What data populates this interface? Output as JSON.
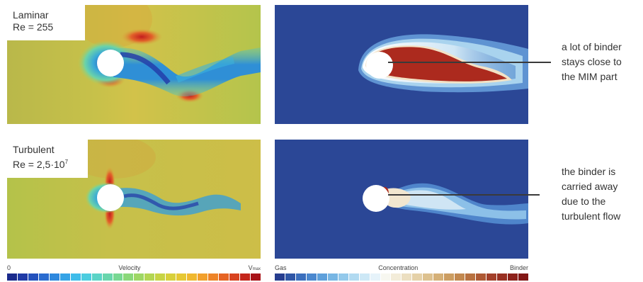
{
  "panels": {
    "laminar": {
      "regime": "Laminar",
      "reynolds": "Re = 255"
    },
    "turbulent": {
      "regime": "Turbulent",
      "reynolds_prefix": "Re = 2,5·10",
      "reynolds_exponent": "7"
    }
  },
  "annotations": {
    "laminar_lines": [
      "a lot of binder",
      "stays close to",
      "the MIM part"
    ],
    "turbulent_lines": [
      "the binder is",
      "carried away",
      "due to the",
      "turbulent flow"
    ]
  },
  "velocity_scale": {
    "min_label": "0",
    "title": "Velocity",
    "max_label_main": "V",
    "max_label_sub": "max",
    "colors": [
      "#1a2a8c",
      "#1f3aa6",
      "#2452bd",
      "#2a6cd0",
      "#2f88de",
      "#35a3e6",
      "#3ebcea",
      "#4ccde0",
      "#5bd4c7",
      "#69d6ad",
      "#78d893",
      "#8ad87a",
      "#9ed765",
      "#b3d653",
      "#c7d445",
      "#d8d03b",
      "#e6c834",
      "#f0b82f",
      "#f2a02c",
      "#ee8428",
      "#e66424",
      "#d84320",
      "#c4261c",
      "#a81318"
    ]
  },
  "concentration_scale": {
    "min_label": "Gas",
    "title": "Concentration",
    "max_label": "Binder",
    "colors": [
      "#263d8f",
      "#2f56a6",
      "#3b6fbd",
      "#4b88cf",
      "#5ea0db",
      "#77b6e4",
      "#93c9eb",
      "#b1daf1",
      "#cde8f6",
      "#e6f3fa",
      "#f7f7f0",
      "#f3ecd9",
      "#ecdfc1",
      "#e5d1a8",
      "#ddc18f",
      "#d5b077",
      "#cc9d61",
      "#c2884f",
      "#b87140",
      "#ae5934",
      "#a3402a",
      "#983022",
      "#8d221b",
      "#821716"
    ]
  },
  "colors": {
    "flow_background": "#b8c648",
    "gas": "#2b4796",
    "binder": "#ac2a1e",
    "leader_line": "#3a3a3a"
  }
}
